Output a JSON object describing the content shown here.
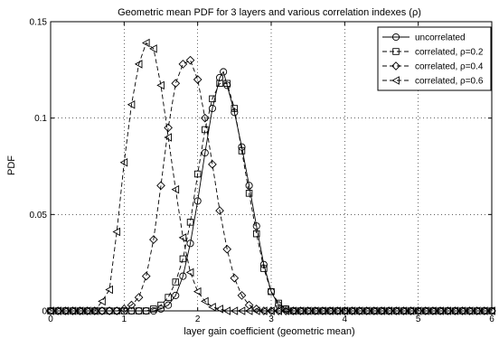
{
  "chart_data": {
    "type": "line",
    "title": "Geometric mean PDF for 3 layers and various correlation indexes (ρ)",
    "xlabel": "layer gain coefficient (geometric mean)",
    "ylabel": "PDF",
    "xlim": [
      0,
      6
    ],
    "ylim": [
      0,
      0.15
    ],
    "xticks": [
      0,
      1,
      2,
      3,
      4,
      5,
      6
    ],
    "xtick_labels": [
      "0",
      "1",
      "2",
      "3",
      "4",
      "5",
      "6"
    ],
    "yticks": [
      0,
      0.05,
      0.1,
      0.15
    ],
    "ytick_labels": [
      "0",
      "0.05",
      "0.1",
      "0.15"
    ],
    "grid": true,
    "legend_position": "top-right",
    "series": [
      {
        "name": "uncorrelated",
        "marker": "circle",
        "line_style": "solid",
        "color": "#000000",
        "points": [
          [
            0.0,
            0
          ],
          [
            0.1,
            0
          ],
          [
            0.2,
            0
          ],
          [
            0.3,
            0
          ],
          [
            0.4,
            0
          ],
          [
            0.5,
            0
          ],
          [
            0.6,
            0
          ],
          [
            0.7,
            0
          ],
          [
            0.8,
            0
          ],
          [
            0.9,
            0
          ],
          [
            1.0,
            0
          ],
          [
            1.1,
            0
          ],
          [
            1.2,
            0
          ],
          [
            1.3,
            0
          ],
          [
            1.4,
            0
          ],
          [
            1.5,
            0.001
          ],
          [
            1.6,
            0.003
          ],
          [
            1.7,
            0.008
          ],
          [
            1.8,
            0.018
          ],
          [
            1.9,
            0.035
          ],
          [
            2.0,
            0.057
          ],
          [
            2.1,
            0.082
          ],
          [
            2.2,
            0.105
          ],
          [
            2.3,
            0.121
          ],
          [
            2.35,
            0.124
          ],
          [
            2.4,
            0.117
          ],
          [
            2.5,
            0.103
          ],
          [
            2.6,
            0.085
          ],
          [
            2.7,
            0.065
          ],
          [
            2.8,
            0.044
          ],
          [
            2.9,
            0.024
          ],
          [
            3.0,
            0.01
          ],
          [
            3.1,
            0.003
          ],
          [
            3.2,
            0.001
          ],
          [
            3.3,
            0
          ],
          [
            3.4,
            0
          ],
          [
            3.5,
            0
          ],
          [
            3.6,
            0
          ],
          [
            3.7,
            0
          ],
          [
            3.8,
            0
          ],
          [
            3.9,
            0
          ],
          [
            4.0,
            0
          ],
          [
            4.1,
            0
          ],
          [
            4.2,
            0
          ],
          [
            4.3,
            0
          ],
          [
            4.4,
            0
          ],
          [
            4.5,
            0
          ],
          [
            4.6,
            0
          ],
          [
            4.7,
            0
          ],
          [
            4.8,
            0
          ],
          [
            4.9,
            0
          ],
          [
            5.0,
            0
          ],
          [
            5.1,
            0
          ],
          [
            5.2,
            0
          ],
          [
            5.3,
            0
          ],
          [
            5.4,
            0
          ],
          [
            5.5,
            0
          ],
          [
            5.6,
            0
          ],
          [
            5.7,
            0
          ],
          [
            5.8,
            0
          ],
          [
            5.9,
            0
          ],
          [
            6.0,
            0
          ]
        ]
      },
      {
        "name": "correlated, ρ=0.2",
        "marker": "square",
        "line_style": "dashed",
        "color": "#000000",
        "points": [
          [
            0.0,
            0
          ],
          [
            0.1,
            0
          ],
          [
            0.2,
            0
          ],
          [
            0.3,
            0
          ],
          [
            0.4,
            0
          ],
          [
            0.5,
            0
          ],
          [
            0.6,
            0
          ],
          [
            0.7,
            0
          ],
          [
            0.8,
            0
          ],
          [
            0.9,
            0
          ],
          [
            1.0,
            0
          ],
          [
            1.1,
            0
          ],
          [
            1.2,
            0
          ],
          [
            1.3,
            0
          ],
          [
            1.4,
            0.001
          ],
          [
            1.5,
            0.003
          ],
          [
            1.6,
            0.007
          ],
          [
            1.7,
            0.015
          ],
          [
            1.8,
            0.027
          ],
          [
            1.9,
            0.046
          ],
          [
            2.0,
            0.071
          ],
          [
            2.1,
            0.094
          ],
          [
            2.2,
            0.11
          ],
          [
            2.3,
            0.118
          ],
          [
            2.4,
            0.118
          ],
          [
            2.5,
            0.105
          ],
          [
            2.6,
            0.083
          ],
          [
            2.7,
            0.061
          ],
          [
            2.8,
            0.04
          ],
          [
            2.9,
            0.022
          ],
          [
            3.0,
            0.01
          ],
          [
            3.1,
            0.004
          ],
          [
            3.2,
            0.001
          ],
          [
            3.3,
            0
          ],
          [
            3.4,
            0
          ],
          [
            3.5,
            0
          ],
          [
            3.6,
            0
          ],
          [
            3.7,
            0
          ],
          [
            3.8,
            0
          ],
          [
            3.9,
            0
          ],
          [
            4.0,
            0
          ],
          [
            4.1,
            0
          ],
          [
            4.2,
            0
          ],
          [
            4.3,
            0
          ],
          [
            4.4,
            0
          ],
          [
            4.5,
            0
          ],
          [
            4.6,
            0
          ],
          [
            4.7,
            0
          ],
          [
            4.8,
            0
          ],
          [
            4.9,
            0
          ],
          [
            5.0,
            0
          ],
          [
            5.1,
            0
          ],
          [
            5.2,
            0
          ],
          [
            5.3,
            0
          ],
          [
            5.4,
            0
          ],
          [
            5.5,
            0
          ],
          [
            5.6,
            0
          ],
          [
            5.7,
            0
          ],
          [
            5.8,
            0
          ],
          [
            5.9,
            0
          ],
          [
            6.0,
            0
          ]
        ]
      },
      {
        "name": "correlated, ρ=0.4",
        "marker": "diamond",
        "line_style": "dashed",
        "color": "#000000",
        "points": [
          [
            0.0,
            0
          ],
          [
            0.1,
            0
          ],
          [
            0.2,
            0
          ],
          [
            0.3,
            0
          ],
          [
            0.4,
            0
          ],
          [
            0.5,
            0
          ],
          [
            0.6,
            0
          ],
          [
            0.7,
            0
          ],
          [
            0.8,
            0
          ],
          [
            0.9,
            0
          ],
          [
            1.0,
            0.001
          ],
          [
            1.1,
            0.003
          ],
          [
            1.2,
            0.007
          ],
          [
            1.3,
            0.018
          ],
          [
            1.4,
            0.037
          ],
          [
            1.5,
            0.065
          ],
          [
            1.6,
            0.095
          ],
          [
            1.7,
            0.118
          ],
          [
            1.8,
            0.128
          ],
          [
            1.9,
            0.13
          ],
          [
            2.0,
            0.12
          ],
          [
            2.1,
            0.1
          ],
          [
            2.2,
            0.076
          ],
          [
            2.3,
            0.052
          ],
          [
            2.4,
            0.032
          ],
          [
            2.5,
            0.017
          ],
          [
            2.6,
            0.008
          ],
          [
            2.7,
            0.003
          ],
          [
            2.8,
            0.001
          ],
          [
            2.9,
            0
          ],
          [
            3.0,
            0
          ],
          [
            3.1,
            0
          ],
          [
            3.2,
            0
          ],
          [
            3.3,
            0
          ],
          [
            3.4,
            0
          ],
          [
            3.5,
            0
          ],
          [
            3.6,
            0
          ],
          [
            3.7,
            0
          ],
          [
            3.8,
            0
          ],
          [
            3.9,
            0
          ],
          [
            4.0,
            0
          ],
          [
            4.1,
            0
          ],
          [
            4.2,
            0
          ],
          [
            4.3,
            0
          ],
          [
            4.4,
            0
          ],
          [
            4.5,
            0
          ],
          [
            4.6,
            0
          ],
          [
            4.7,
            0
          ],
          [
            4.8,
            0
          ],
          [
            4.9,
            0
          ],
          [
            5.0,
            0
          ],
          [
            5.1,
            0
          ],
          [
            5.2,
            0
          ],
          [
            5.3,
            0
          ],
          [
            5.4,
            0
          ],
          [
            5.5,
            0
          ],
          [
            5.6,
            0
          ],
          [
            5.7,
            0
          ],
          [
            5.8,
            0
          ],
          [
            5.9,
            0
          ],
          [
            6.0,
            0
          ]
        ]
      },
      {
        "name": "correlated, ρ=0.6",
        "marker": "triangle-left",
        "line_style": "dashed",
        "color": "#000000",
        "points": [
          [
            0.0,
            0
          ],
          [
            0.1,
            0
          ],
          [
            0.2,
            0
          ],
          [
            0.3,
            0
          ],
          [
            0.4,
            0
          ],
          [
            0.5,
            0
          ],
          [
            0.6,
            0
          ],
          [
            0.7,
            0.005
          ],
          [
            0.8,
            0.011
          ],
          [
            0.9,
            0.041
          ],
          [
            1.0,
            0.077
          ],
          [
            1.1,
            0.107
          ],
          [
            1.2,
            0.128
          ],
          [
            1.3,
            0.139
          ],
          [
            1.4,
            0.136
          ],
          [
            1.5,
            0.117
          ],
          [
            1.6,
            0.09
          ],
          [
            1.7,
            0.063
          ],
          [
            1.8,
            0.038
          ],
          [
            1.9,
            0.02
          ],
          [
            2.0,
            0.01
          ],
          [
            2.1,
            0.005
          ],
          [
            2.2,
            0.002
          ],
          [
            2.3,
            0.001
          ],
          [
            2.4,
            0
          ],
          [
            2.5,
            0
          ],
          [
            2.6,
            0
          ],
          [
            2.7,
            0
          ],
          [
            2.8,
            0
          ],
          [
            2.9,
            0
          ],
          [
            3.0,
            0
          ],
          [
            3.1,
            0
          ],
          [
            3.2,
            0
          ],
          [
            3.3,
            0
          ],
          [
            3.4,
            0
          ],
          [
            3.5,
            0
          ],
          [
            3.6,
            0
          ],
          [
            3.7,
            0
          ],
          [
            3.8,
            0
          ],
          [
            3.9,
            0
          ],
          [
            4.0,
            0
          ],
          [
            4.1,
            0
          ],
          [
            4.2,
            0
          ],
          [
            4.3,
            0
          ],
          [
            4.4,
            0
          ],
          [
            4.5,
            0
          ],
          [
            4.6,
            0
          ],
          [
            4.7,
            0
          ],
          [
            4.8,
            0
          ],
          [
            4.9,
            0
          ],
          [
            5.0,
            0
          ],
          [
            5.1,
            0
          ],
          [
            5.2,
            0
          ],
          [
            5.3,
            0
          ],
          [
            5.4,
            0
          ],
          [
            5.5,
            0
          ],
          [
            5.6,
            0
          ],
          [
            5.7,
            0
          ],
          [
            5.8,
            0
          ],
          [
            5.9,
            0
          ],
          [
            6.0,
            0
          ]
        ]
      }
    ]
  }
}
